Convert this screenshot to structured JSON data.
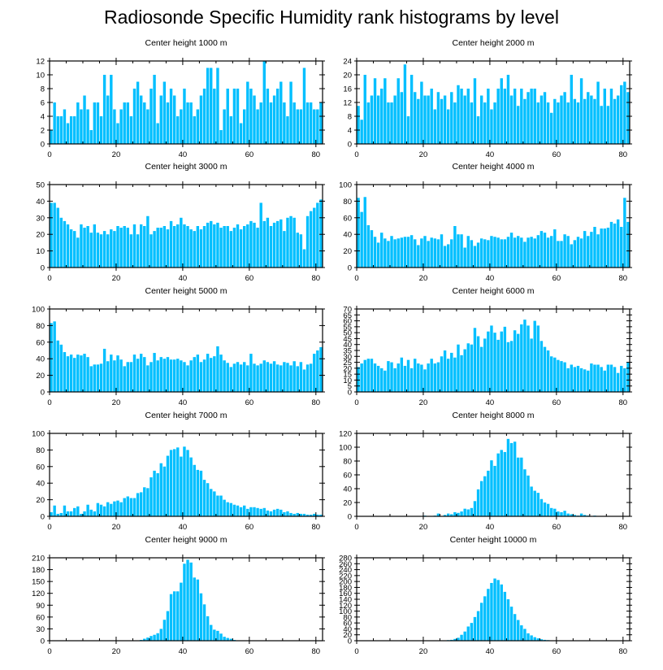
{
  "title": "Radiosonde Specific Humidity rank histograms by level",
  "bar_color": "#00bfff",
  "chart_data": [
    {
      "type": "bar",
      "title": "Center height 1000 m",
      "ylim": [
        0,
        12
      ],
      "yticks": [
        0,
        2,
        4,
        6,
        8,
        10,
        12
      ],
      "xticks": [
        0,
        20,
        40,
        60,
        80
      ],
      "xlim": [
        0,
        82
      ],
      "values": [
        2,
        6,
        4,
        4,
        5,
        3,
        4,
        4,
        6,
        5,
        7,
        5,
        2,
        6,
        6,
        4,
        10,
        7,
        10,
        5,
        3,
        5,
        6,
        6,
        4,
        8,
        9,
        7,
        6,
        5,
        8,
        10,
        3,
        7,
        9,
        6,
        8,
        7,
        4,
        5,
        8,
        6,
        6,
        4,
        5,
        7,
        8,
        11,
        11,
        8,
        11,
        2,
        5,
        8,
        4,
        8,
        8,
        3,
        5,
        9,
        8,
        7,
        5,
        6,
        12,
        8,
        6,
        7,
        8,
        9,
        6,
        4,
        9,
        6,
        5,
        5,
        11,
        6,
        6,
        5,
        5,
        6
      ]
    },
    {
      "type": "bar",
      "title": "Center height 2000 m",
      "ylim": [
        0,
        24
      ],
      "yticks": [
        0,
        4,
        8,
        12,
        16,
        20,
        24
      ],
      "xticks": [
        0,
        20,
        40,
        60,
        80
      ],
      "xlim": [
        0,
        82
      ],
      "values": [
        11,
        7,
        20,
        12,
        14,
        19,
        14,
        16,
        19,
        12,
        12,
        14,
        19,
        15,
        23,
        8,
        20,
        15,
        13,
        18,
        14,
        14,
        16,
        10,
        15,
        13,
        14,
        10,
        15,
        12,
        17,
        16,
        14,
        16,
        12,
        19,
        8,
        14,
        12,
        16,
        10,
        12,
        16,
        19,
        16,
        20,
        14,
        16,
        11,
        16,
        13,
        15,
        16,
        16,
        12,
        14,
        15,
        12,
        9,
        13,
        12,
        14,
        15,
        12,
        20,
        13,
        12,
        19,
        13,
        15,
        14,
        13,
        18,
        11,
        16,
        11,
        16,
        13,
        14,
        17,
        18,
        15
      ]
    },
    {
      "type": "bar",
      "title": "Center height 3000 m",
      "ylim": [
        0,
        50
      ],
      "yticks": [
        0,
        10,
        20,
        30,
        40,
        50
      ],
      "xticks": [
        0,
        20,
        40,
        60,
        80
      ],
      "xlim": [
        0,
        82
      ],
      "values": [
        39,
        39,
        36,
        30,
        28,
        26,
        23,
        22,
        18,
        26,
        24,
        25,
        21,
        26,
        21,
        20,
        22,
        20,
        23,
        22,
        25,
        24,
        25,
        24,
        20,
        26,
        20,
        26,
        25,
        31,
        20,
        22,
        24,
        24,
        25,
        23,
        28,
        25,
        26,
        30,
        26,
        25,
        23,
        22,
        25,
        23,
        25,
        27,
        28,
        26,
        27,
        24,
        25,
        25,
        22,
        24,
        26,
        23,
        25,
        26,
        28,
        27,
        24,
        39,
        28,
        30,
        25,
        27,
        28,
        29,
        22,
        30,
        31,
        30,
        21,
        20,
        11,
        31,
        34,
        36,
        39,
        41
      ]
    },
    {
      "type": "bar",
      "title": "Center height 4000 m",
      "ylim": [
        0,
        100
      ],
      "yticks": [
        0,
        20,
        40,
        60,
        80,
        100
      ],
      "xticks": [
        0,
        20,
        40,
        60,
        80
      ],
      "xlim": [
        0,
        82
      ],
      "values": [
        84,
        67,
        85,
        51,
        45,
        37,
        30,
        42,
        35,
        32,
        38,
        34,
        35,
        36,
        37,
        37,
        39,
        34,
        27,
        35,
        38,
        32,
        36,
        35,
        34,
        40,
        26,
        28,
        34,
        50,
        40,
        40,
        24,
        38,
        33,
        26,
        30,
        35,
        34,
        33,
        38,
        37,
        36,
        34,
        34,
        37,
        42,
        36,
        38,
        36,
        31,
        36,
        37,
        35,
        39,
        44,
        42,
        36,
        38,
        46,
        32,
        32,
        40,
        38,
        28,
        33,
        37,
        35,
        44,
        38,
        43,
        49,
        40,
        47,
        47,
        48,
        55,
        53,
        58,
        49,
        84,
        55
      ]
    },
    {
      "type": "bar",
      "title": "Center height 5000 m",
      "ylim": [
        0,
        100
      ],
      "yticks": [
        0,
        20,
        40,
        60,
        80,
        100
      ],
      "xticks": [
        0,
        20,
        40,
        60,
        80
      ],
      "xlim": [
        0,
        82
      ],
      "values": [
        83,
        85,
        62,
        57,
        48,
        43,
        45,
        41,
        45,
        44,
        46,
        42,
        31,
        33,
        33,
        34,
        52,
        37,
        45,
        38,
        44,
        39,
        31,
        36,
        36,
        45,
        40,
        46,
        42,
        32,
        36,
        47,
        38,
        42,
        40,
        42,
        39,
        39,
        40,
        38,
        36,
        32,
        38,
        42,
        45,
        36,
        39,
        46,
        41,
        43,
        55,
        45,
        38,
        35,
        30,
        34,
        36,
        33,
        36,
        32,
        46,
        34,
        32,
        34,
        38,
        36,
        34,
        37,
        33,
        32,
        36,
        35,
        32,
        37,
        31,
        36,
        27,
        33,
        34,
        46,
        50,
        54
      ]
    },
    {
      "type": "bar",
      "title": "Center height 6000 m",
      "ylim": [
        0,
        70
      ],
      "yticks": [
        0,
        5,
        10,
        15,
        20,
        25,
        30,
        35,
        40,
        45,
        50,
        55,
        60,
        65,
        70
      ],
      "xticks": [
        0,
        20,
        40,
        60,
        80
      ],
      "xlim": [
        0,
        82
      ],
      "values": [
        21,
        24,
        27,
        28,
        28,
        24,
        22,
        20,
        18,
        26,
        25,
        20,
        24,
        29,
        22,
        27,
        20,
        28,
        24,
        23,
        19,
        24,
        28,
        24,
        25,
        30,
        35,
        28,
        33,
        29,
        40,
        31,
        36,
        41,
        40,
        54,
        47,
        38,
        45,
        51,
        56,
        50,
        44,
        51,
        55,
        42,
        43,
        52,
        49,
        57,
        61,
        56,
        45,
        60,
        56,
        43,
        38,
        35,
        30,
        29,
        27,
        26,
        25,
        20,
        23,
        21,
        22,
        20,
        19,
        18,
        24,
        23,
        23,
        21,
        18,
        23,
        23,
        21,
        16,
        22,
        20,
        25
      ]
    },
    {
      "type": "bar",
      "title": "Center height 7000 m",
      "ylim": [
        0,
        100
      ],
      "yticks": [
        0,
        20,
        40,
        60,
        80,
        100
      ],
      "xticks": [
        0,
        20,
        40,
        60,
        80
      ],
      "xlim": [
        0,
        82
      ],
      "values": [
        5,
        13,
        3,
        4,
        13,
        6,
        6,
        10,
        12,
        3,
        6,
        14,
        8,
        6,
        16,
        14,
        12,
        17,
        15,
        18,
        19,
        17,
        22,
        24,
        22,
        22,
        28,
        29,
        35,
        34,
        47,
        55,
        52,
        64,
        60,
        73,
        80,
        81,
        83,
        72,
        84,
        80,
        71,
        62,
        56,
        55,
        44,
        40,
        33,
        30,
        25,
        25,
        20,
        17,
        16,
        14,
        13,
        11,
        13,
        9,
        11,
        11,
        10,
        9,
        10,
        7,
        6,
        8,
        9,
        8,
        5,
        6,
        4,
        3,
        4,
        3,
        3,
        2,
        2,
        3,
        2,
        2
      ]
    },
    {
      "type": "bar",
      "title": "Center height 8000 m",
      "ylim": [
        0,
        120
      ],
      "yticks": [
        0,
        20,
        40,
        60,
        80,
        100,
        120
      ],
      "xticks": [
        0,
        20,
        40,
        60,
        80
      ],
      "xlim": [
        0,
        82
      ],
      "values": [
        0,
        0,
        0,
        0,
        0,
        0,
        0,
        0,
        0,
        0,
        0,
        0,
        0,
        0,
        0,
        0,
        0,
        0,
        0,
        0,
        1,
        0,
        0,
        1,
        4,
        0,
        2,
        4,
        3,
        6,
        5,
        7,
        11,
        10,
        12,
        22,
        39,
        51,
        58,
        66,
        81,
        73,
        91,
        96,
        93,
        112,
        106,
        108,
        85,
        85,
        68,
        59,
        43,
        37,
        34,
        25,
        20,
        18,
        12,
        11,
        7,
        6,
        8,
        4,
        3,
        2,
        1,
        4,
        2,
        1,
        0,
        1,
        0,
        0,
        0,
        0,
        0,
        0,
        0,
        0,
        0,
        0
      ]
    },
    {
      "type": "bar",
      "title": "Center height 9000 m",
      "ylim": [
        0,
        210
      ],
      "yticks": [
        0,
        30,
        60,
        90,
        120,
        150,
        180,
        210
      ],
      "xticks": [
        0,
        20,
        40,
        60,
        80
      ],
      "xlim": [
        0,
        82
      ],
      "values": [
        0,
        0,
        0,
        0,
        0,
        0,
        0,
        0,
        0,
        0,
        0,
        0,
        0,
        0,
        0,
        0,
        0,
        0,
        0,
        0,
        0,
        0,
        0,
        0,
        0,
        1,
        1,
        2,
        5,
        8,
        12,
        15,
        19,
        30,
        53,
        75,
        118,
        125,
        125,
        147,
        195,
        205,
        198,
        160,
        155,
        120,
        92,
        62,
        40,
        28,
        25,
        18,
        10,
        7,
        5,
        2,
        1,
        1,
        0,
        0,
        0,
        0,
        0,
        0,
        0,
        0,
        0,
        0,
        0,
        0,
        0,
        0,
        0,
        0,
        0,
        0,
        0,
        0,
        0,
        0,
        0,
        0
      ]
    },
    {
      "type": "bar",
      "title": "Center height 10000 m",
      "ylim": [
        0,
        280
      ],
      "yticks": [
        0,
        20,
        40,
        60,
        80,
        100,
        120,
        140,
        160,
        180,
        200,
        220,
        240,
        260,
        280
      ],
      "xticks": [
        0,
        20,
        40,
        60,
        80
      ],
      "xlim": [
        0,
        82
      ],
      "values": [
        0,
        0,
        0,
        0,
        0,
        0,
        0,
        0,
        0,
        0,
        0,
        0,
        0,
        0,
        0,
        0,
        0,
        0,
        0,
        0,
        0,
        0,
        0,
        0,
        0,
        1,
        1,
        2,
        3,
        6,
        10,
        20,
        31,
        48,
        60,
        80,
        100,
        128,
        150,
        175,
        195,
        210,
        205,
        190,
        165,
        140,
        115,
        90,
        70,
        52,
        40,
        25,
        18,
        12,
        8,
        5,
        3,
        2,
        1,
        0,
        0,
        0,
        0,
        0,
        0,
        0,
        0,
        0,
        0,
        0,
        0,
        0,
        0,
        0,
        0,
        0,
        0,
        0,
        0,
        0,
        0,
        0
      ]
    }
  ]
}
